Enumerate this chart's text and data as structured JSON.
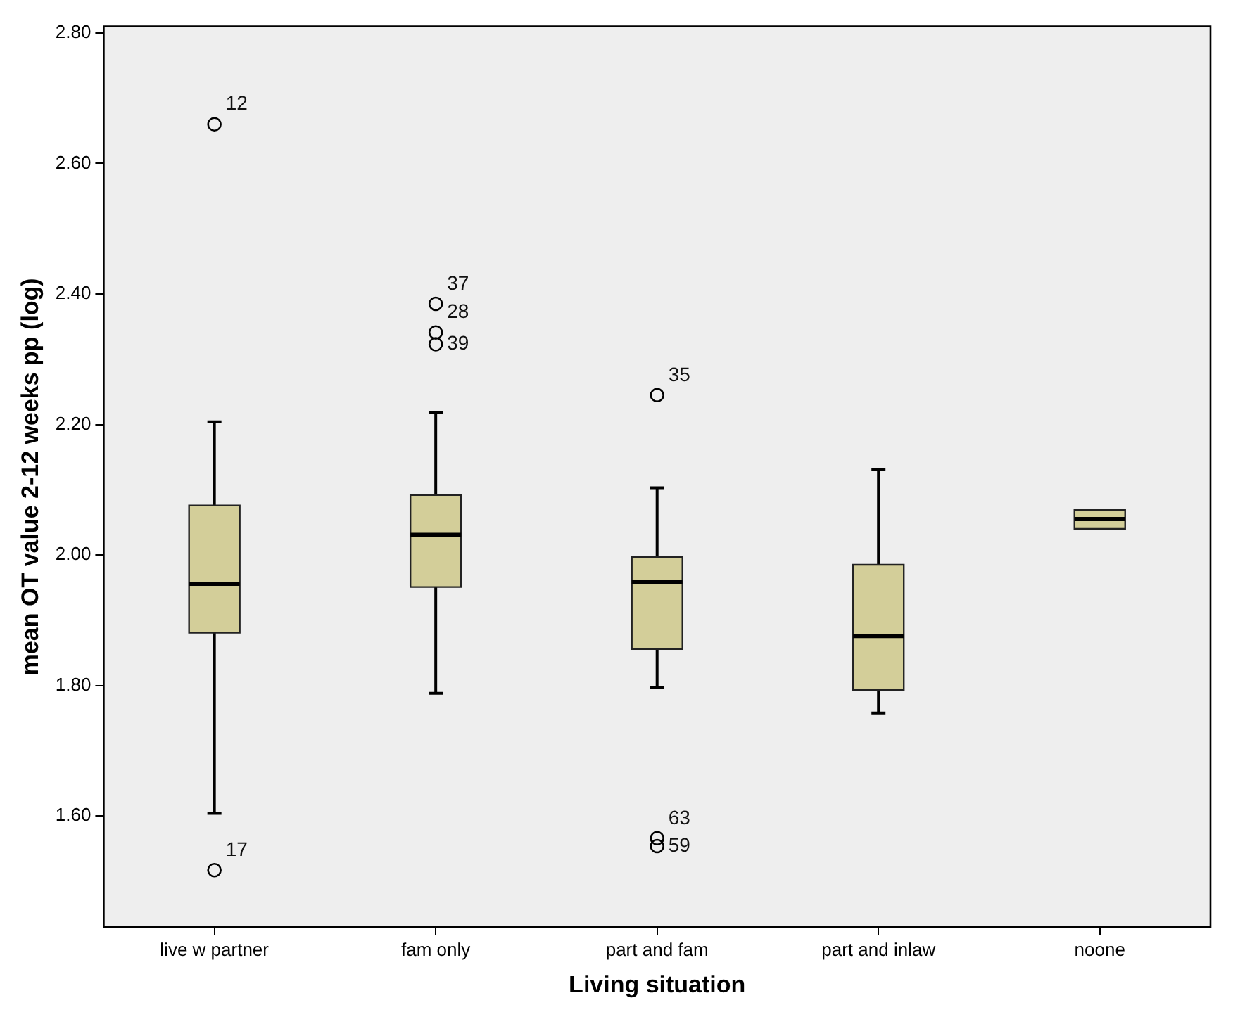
{
  "chart_data": {
    "type": "box",
    "xlabel": "Living situation",
    "ylabel": "mean OT value 2-12 weeks pp (log)",
    "categories": [
      "live w partner",
      "fam only",
      "part and fam",
      "part and inlaw",
      "noone"
    ],
    "color": "#d3ce99",
    "boxes": [
      {
        "low": 1.604,
        "q1": 1.881,
        "median": 1.956,
        "q3": 2.076,
        "high": 2.204,
        "outliers": [
          2.66,
          1.517
        ]
      },
      {
        "low": 1.788,
        "q1": 1.951,
        "median": 2.031,
        "q3": 2.092,
        "high": 2.219,
        "outliers": [
          2.385,
          2.341,
          2.323
        ]
      },
      {
        "low": 1.797,
        "q1": 1.856,
        "median": 1.958,
        "q3": 1.997,
        "high": 2.103,
        "outliers": [
          2.245,
          1.566,
          1.554
        ]
      },
      {
        "low": 1.758,
        "q1": 1.793,
        "median": 1.876,
        "q3": 1.985,
        "high": 2.131
      },
      {
        "low": 2.04,
        "q1": 2.04,
        "median": 2.055,
        "q3": 2.069,
        "high": 2.069
      }
    ],
    "ylim": [
      1.43,
      2.81
    ],
    "yticks": [
      {
        "value": 1.6,
        "label": "1.60"
      },
      {
        "value": 1.8,
        "label": "1.80"
      },
      {
        "value": 2.0,
        "label": "2.00"
      },
      {
        "value": 2.2,
        "label": "2.20"
      },
      {
        "value": 2.4,
        "label": "2.40"
      },
      {
        "value": 2.6,
        "label": "2.60"
      },
      {
        "value": 2.8,
        "label": "2.80"
      }
    ],
    "grid": false,
    "legend": false,
    "annotations": [
      "12",
      "17",
      "37",
      "28",
      "39",
      "35",
      "63",
      "59"
    ]
  }
}
